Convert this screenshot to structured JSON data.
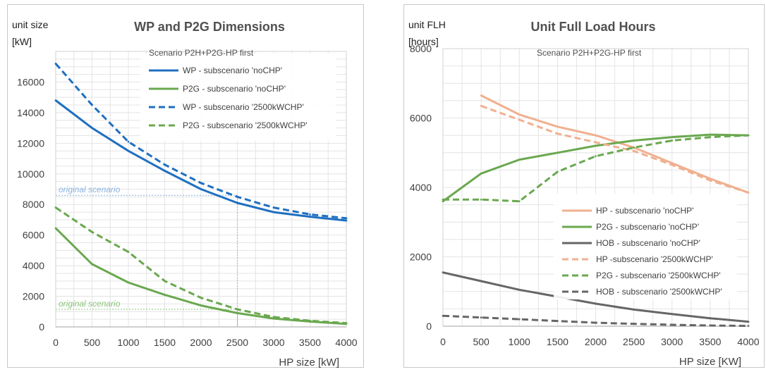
{
  "chart_data": [
    {
      "type": "line",
      "title": "WP and P2G Dimensions",
      "ylabel_line1": "unit size",
      "ylabel_line2": "[kW]",
      "xlabel": "HP size [kW]",
      "legend_title": "Scenario P2H+P2G-HP first",
      "legend_placement": "top-right",
      "grid": true,
      "xlim": [
        0,
        4000
      ],
      "ylim": [
        0,
        18000
      ],
      "x_ticks": [
        0,
        500,
        1000,
        1500,
        2000,
        2500,
        3000,
        3500,
        4000
      ],
      "y_ticks": [
        0,
        2000,
        4000,
        6000,
        8000,
        10000,
        12000,
        14000,
        16000
      ],
      "x": [
        0,
        500,
        1000,
        1500,
        2000,
        2500,
        3000,
        3500,
        4000
      ],
      "series": [
        {
          "name": "WP  - subscenario 'noCHP'",
          "color": "#1f6fc1",
          "dash": "solid",
          "values": [
            14800,
            13000,
            11500,
            10200,
            9000,
            8100,
            7500,
            7200,
            6950
          ]
        },
        {
          "name": "P2G  - subscenario 'noCHP'",
          "color": "#6aa84f",
          "dash": "solid",
          "values": [
            6450,
            4100,
            2900,
            2100,
            1400,
            900,
            550,
            350,
            200
          ]
        },
        {
          "name": "WP - subscenario '2500kWCHP'",
          "color": "#1f6fc1",
          "dash": "dashed",
          "values": [
            17200,
            14500,
            12100,
            10600,
            9400,
            8500,
            7800,
            7350,
            7100
          ]
        },
        {
          "name": "P2G - subscenario '2500kWCHP'",
          "color": "#6aa84f",
          "dash": "dashed",
          "values": [
            7800,
            6200,
            4900,
            3000,
            1900,
            1150,
            650,
            400,
            250
          ]
        }
      ],
      "annotations": [
        {
          "text": "original scenario",
          "color": "#8ab4e0",
          "y": 8600,
          "x_end": 2500
        },
        {
          "text": "original scenario",
          "color": "#8bc47a",
          "y": 1150,
          "x_end": 2500
        }
      ]
    },
    {
      "type": "line",
      "title": "Unit Full Load Hours",
      "ylabel_line1": "unit FLH",
      "ylabel_line2": "[hours]",
      "xlabel": "HP size [KW]",
      "legend_title": "Scenario P2H+P2G-HP first",
      "legend_placement": "bottom-right",
      "grid": true,
      "xlim": [
        0,
        4000
      ],
      "ylim": [
        0,
        8000
      ],
      "x_ticks": [
        0,
        500,
        1000,
        1500,
        2000,
        2500,
        3000,
        3500,
        4000
      ],
      "y_ticks": [
        0,
        2000,
        4000,
        6000,
        8000
      ],
      "series": [
        {
          "name": "HP - subscenario 'noCHP'",
          "color": "#f0b090",
          "dash": "solid",
          "x": [
            500,
            1000,
            1500,
            2000,
            2500,
            3000,
            3500,
            4000
          ],
          "values": [
            6650,
            6100,
            5750,
            5500,
            5150,
            4700,
            4250,
            3850
          ]
        },
        {
          "name": "P2G - subscenario 'noCHP'",
          "color": "#6aa84f",
          "dash": "solid",
          "x": [
            0,
            500,
            1000,
            1500,
            2000,
            2500,
            3000,
            3500,
            4000
          ],
          "values": [
            3600,
            4400,
            4800,
            5000,
            5200,
            5350,
            5450,
            5520,
            5500
          ]
        },
        {
          "name": "HOB - subscenario 'noCHP'",
          "color": "#666666",
          "dash": "solid",
          "x": [
            0,
            500,
            1000,
            1500,
            2000,
            2500,
            3000,
            3500,
            4000
          ],
          "values": [
            1550,
            1300,
            1050,
            850,
            650,
            480,
            350,
            230,
            130
          ]
        },
        {
          "name": "HP -subscenario '2500kWCHP'",
          "color": "#f0b090",
          "dash": "dashed",
          "x": [
            500,
            1000,
            1500,
            2000,
            2500,
            3000,
            3500,
            4000
          ],
          "values": [
            6350,
            5950,
            5550,
            5300,
            5050,
            4650,
            4200,
            3850
          ]
        },
        {
          "name": "P2G - subscenario '2500kWCHP'",
          "color": "#6aa84f",
          "dash": "dashed",
          "x": [
            0,
            500,
            1000,
            1500,
            2000,
            2500,
            3000,
            3500,
            4000
          ],
          "values": [
            3650,
            3650,
            3600,
            4450,
            4900,
            5150,
            5350,
            5450,
            5500
          ]
        },
        {
          "name": "HOB - subscenario '2500kWCHP'",
          "color": "#666666",
          "dash": "dashed",
          "x": [
            0,
            500,
            1000,
            1500,
            2000,
            2500,
            3000,
            3500,
            4000
          ],
          "values": [
            300,
            250,
            200,
            150,
            100,
            70,
            40,
            20,
            10
          ]
        }
      ]
    }
  ]
}
